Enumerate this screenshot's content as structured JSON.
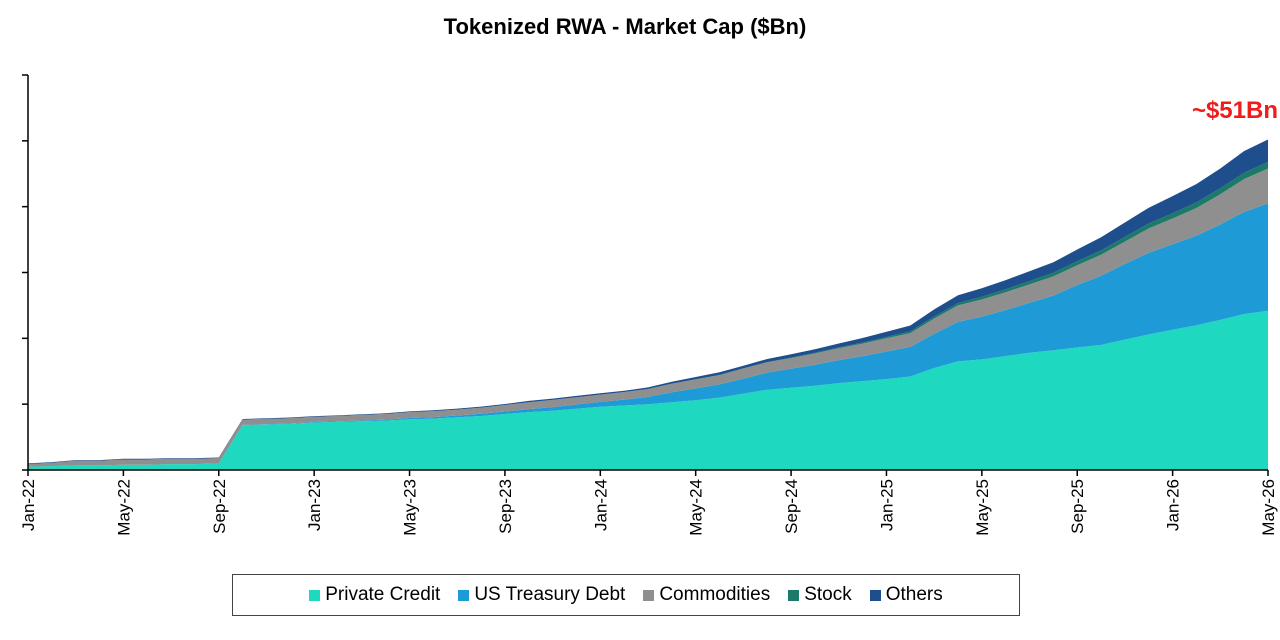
{
  "colors": {
    "Private Credit": "#1fd8c0",
    "US Treasury Debt": "#1e9bd7",
    "Commodities": "#8f8f8f",
    "Stock": "#1b7a68",
    "Others": "#1f4e8c",
    "annotation": "#ee1c1c"
  },
  "chart_data": {
    "type": "area",
    "stacked": true,
    "title": "Tokenized RWA - Market Cap ($Bn)",
    "xlabel": "",
    "ylabel": "",
    "x_tick_labels": [
      "Jan-22",
      "May-22",
      "Sep-22",
      "Jan-23",
      "May-23",
      "Sep-23",
      "Jan-24",
      "May-24",
      "Sep-24",
      "Jan-25",
      "May-25",
      "Sep-25",
      "Jan-26",
      "May-26"
    ],
    "ylim": [
      0,
      60
    ],
    "y_tick_labels_visible": false,
    "grid": false,
    "legend_position": "bottom",
    "annotation": "~$51Bn",
    "x": [
      "2022-01",
      "2022-02",
      "2022-03",
      "2022-04",
      "2022-05",
      "2022-06",
      "2022-07",
      "2022-08",
      "2022-09",
      "2022-10",
      "2022-11",
      "2022-12",
      "2023-01",
      "2023-02",
      "2023-03",
      "2023-04",
      "2023-05",
      "2023-06",
      "2023-07",
      "2023-08",
      "2023-09",
      "2023-10",
      "2023-11",
      "2023-12",
      "2024-01",
      "2024-02",
      "2024-03",
      "2024-04",
      "2024-05",
      "2024-06",
      "2024-07",
      "2024-08",
      "2024-09",
      "2024-10",
      "2024-11",
      "2024-12",
      "2025-01",
      "2025-02",
      "2025-03",
      "2025-04",
      "2025-05",
      "2025-06",
      "2025-07",
      "2025-08",
      "2025-09",
      "2025-10",
      "2025-11",
      "2025-12",
      "2026-01",
      "2026-02",
      "2026-03",
      "2026-04",
      "2026-05"
    ],
    "series": [
      {
        "name": "Private Credit",
        "values": [
          0.5,
          0.6,
          0.7,
          0.7,
          0.8,
          0.8,
          0.9,
          0.9,
          1.0,
          6.8,
          6.9,
          7.0,
          7.2,
          7.3,
          7.4,
          7.5,
          7.7,
          7.8,
          8.0,
          8.2,
          8.5,
          8.8,
          9.0,
          9.3,
          9.6,
          9.8,
          10.0,
          10.3,
          10.6,
          11.0,
          11.6,
          12.2,
          12.5,
          12.8,
          13.2,
          13.5,
          13.8,
          14.2,
          15.5,
          16.5,
          16.8,
          17.3,
          17.8,
          18.2,
          18.6,
          19.0,
          19.8,
          20.6,
          21.3,
          22.0,
          22.8,
          23.7,
          24.2
        ]
      },
      {
        "name": "US Treasury Debt",
        "values": [
          0.0,
          0.0,
          0.0,
          0.0,
          0.0,
          0.0,
          0.0,
          0.0,
          0.0,
          0.05,
          0.06,
          0.07,
          0.09,
          0.1,
          0.12,
          0.16,
          0.2,
          0.24,
          0.28,
          0.33,
          0.38,
          0.45,
          0.55,
          0.65,
          0.75,
          0.9,
          1.1,
          1.5,
          1.8,
          2.0,
          2.3,
          2.6,
          2.9,
          3.2,
          3.5,
          3.8,
          4.2,
          4.5,
          5.2,
          6.0,
          6.5,
          7.0,
          7.6,
          8.3,
          9.5,
          10.5,
          11.5,
          12.4,
          13.0,
          13.6,
          14.5,
          15.5,
          16.3
        ]
      },
      {
        "name": "Commodities",
        "values": [
          0.4,
          0.5,
          0.7,
          0.7,
          0.8,
          0.8,
          0.8,
          0.8,
          0.8,
          0.8,
          0.8,
          0.8,
          0.8,
          0.8,
          0.85,
          0.85,
          0.9,
          0.9,
          0.9,
          0.95,
          1.0,
          1.05,
          1.1,
          1.1,
          1.1,
          1.15,
          1.2,
          1.3,
          1.35,
          1.4,
          1.5,
          1.55,
          1.6,
          1.7,
          1.8,
          1.9,
          2.0,
          2.1,
          2.3,
          2.5,
          2.6,
          2.7,
          2.8,
          2.9,
          3.0,
          3.2,
          3.4,
          3.7,
          3.9,
          4.2,
          4.6,
          5.0,
          5.3
        ]
      },
      {
        "name": "Stock",
        "values": [
          0.0,
          0.0,
          0.0,
          0.0,
          0.0,
          0.0,
          0.0,
          0.0,
          0.0,
          0.0,
          0.0,
          0.0,
          0.0,
          0.0,
          0.0,
          0.0,
          0.0,
          0.0,
          0.0,
          0.0,
          0.0,
          0.0,
          0.0,
          0.0,
          0.0,
          0.0,
          0.0,
          0.02,
          0.03,
          0.04,
          0.05,
          0.06,
          0.08,
          0.1,
          0.12,
          0.15,
          0.2,
          0.25,
          0.3,
          0.35,
          0.4,
          0.45,
          0.5,
          0.55,
          0.6,
          0.65,
          0.7,
          0.75,
          0.8,
          0.85,
          0.9,
          0.95,
          1.0
        ]
      },
      {
        "name": "Others",
        "values": [
          0.1,
          0.1,
          0.1,
          0.1,
          0.1,
          0.1,
          0.1,
          0.1,
          0.1,
          0.1,
          0.1,
          0.1,
          0.1,
          0.1,
          0.1,
          0.1,
          0.1,
          0.15,
          0.15,
          0.15,
          0.15,
          0.2,
          0.2,
          0.2,
          0.2,
          0.2,
          0.25,
          0.3,
          0.35,
          0.4,
          0.4,
          0.45,
          0.5,
          0.55,
          0.6,
          0.7,
          0.8,
          0.9,
          1.1,
          1.2,
          1.3,
          1.4,
          1.5,
          1.6,
          1.8,
          2.0,
          2.2,
          2.4,
          2.6,
          2.8,
          3.0,
          3.3,
          3.4
        ]
      }
    ]
  }
}
